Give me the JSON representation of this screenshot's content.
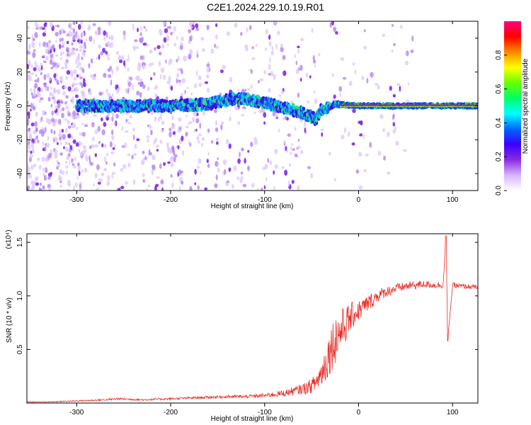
{
  "title": "C2E1.2024.229.10.19.R01",
  "colors": {
    "axis": "#000000",
    "snr_line": "#e8302a",
    "background": "#ffffff"
  },
  "chart_data": [
    {
      "type": "heatmap",
      "name": "spectrogram",
      "xlabel": "Height of straight line (km)",
      "ylabel": "Frequency (Hz)",
      "xlim": [
        -353,
        127
      ],
      "ylim": [
        -50,
        50
      ],
      "xticks": [
        -300,
        -200,
        -100,
        0,
        100
      ],
      "yticks": [
        -40,
        -20,
        0,
        20,
        40
      ],
      "colorbar": {
        "label": "Normalized spectral amplitude",
        "range": [
          0,
          1
        ],
        "ticks": [
          0.0,
          0.2,
          0.4,
          0.6,
          0.8
        ],
        "tick_labels": [
          "0.0",
          "0.2",
          "0.4",
          "0.6",
          "0.8"
        ],
        "colormap": [
          "#ffffff",
          "#d8b4ff",
          "#8a2be2",
          "#3a00ff",
          "#0066ff",
          "#00ffff",
          "#00ff66",
          "#66ff00",
          "#ffff00",
          "#ff8800",
          "#ff0000",
          "#ff0080"
        ]
      },
      "ridge": [
        {
          "x": -300,
          "y": 0
        },
        {
          "x": -250,
          "y": 0
        },
        {
          "x": -200,
          "y": 0
        },
        {
          "x": -160,
          "y": 1
        },
        {
          "x": -135,
          "y": 4
        },
        {
          "x": -120,
          "y": 4
        },
        {
          "x": -100,
          "y": 2
        },
        {
          "x": -80,
          "y": -1
        },
        {
          "x": -60,
          "y": -4
        },
        {
          "x": -45,
          "y": -8
        },
        {
          "x": -40,
          "y": -2
        },
        {
          "x": -25,
          "y": 1
        },
        {
          "x": 0,
          "y": 0
        },
        {
          "x": 90,
          "y": 0
        },
        {
          "x": 127,
          "y": 0
        }
      ]
    },
    {
      "type": "line",
      "name": "snr",
      "xlabel": "Height of straight line (km)",
      "ylabel": "SNR (10 * v/v)",
      "scale_label": "(x10⁴)",
      "xlim": [
        -353,
        127
      ],
      "ylim": [
        0,
        1.58
      ],
      "xticks": [
        -300,
        -200,
        -100,
        0,
        100
      ],
      "yticks": [
        0.5,
        1.0,
        1.5
      ],
      "ytick_labels": [
        "0.5",
        "1.0",
        "1.5"
      ],
      "x": [
        -353,
        -330,
        -300,
        -270,
        -255,
        -230,
        -200,
        -170,
        -140,
        -120,
        -100,
        -80,
        -70,
        -60,
        -50,
        -45,
        -40,
        -35,
        -30,
        -25,
        -20,
        -15,
        -10,
        -5,
        0,
        10,
        20,
        30,
        40,
        50,
        60,
        70,
        80,
        90,
        93,
        95,
        100,
        110,
        127
      ],
      "y": [
        0.01,
        0.01,
        0.02,
        0.03,
        0.04,
        0.03,
        0.04,
        0.05,
        0.06,
        0.06,
        0.07,
        0.09,
        0.11,
        0.13,
        0.16,
        0.2,
        0.27,
        0.37,
        0.5,
        0.6,
        0.66,
        0.72,
        0.78,
        0.83,
        0.86,
        0.93,
        1.0,
        1.04,
        1.07,
        1.09,
        1.1,
        1.11,
        1.1,
        1.1,
        1.54,
        0.6,
        1.1,
        1.09,
        1.08
      ],
      "noise": [
        0.004,
        0.004,
        0.006,
        0.008,
        0.01,
        0.008,
        0.01,
        0.012,
        0.014,
        0.015,
        0.02,
        0.03,
        0.04,
        0.05,
        0.07,
        0.09,
        0.13,
        0.18,
        0.22,
        0.24,
        0.22,
        0.18,
        0.15,
        0.12,
        0.1,
        0.08,
        0.06,
        0.05,
        0.045,
        0.04,
        0.04,
        0.035,
        0.03,
        0.03,
        0.0,
        0.0,
        0.025,
        0.025,
        0.02
      ]
    }
  ]
}
